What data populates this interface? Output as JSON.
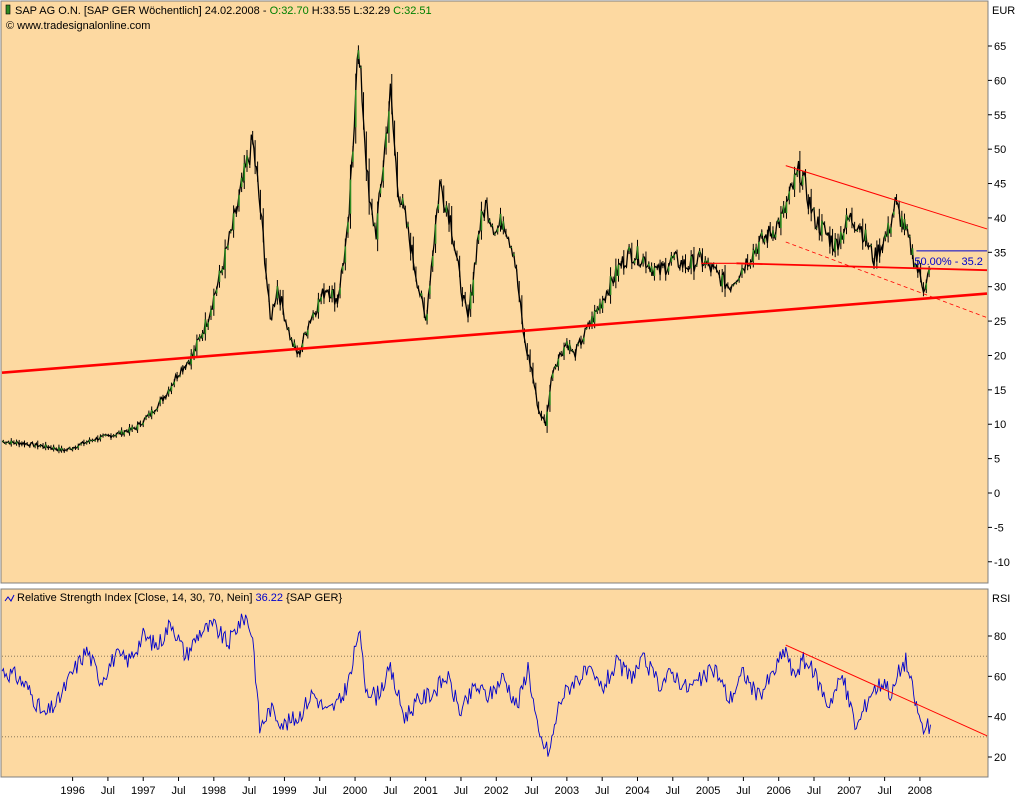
{
  "header": {
    "instrument": "SAP AG O.N. [SAP GER  Wöchentlich] 24.02.2008",
    "open": "O:32.70",
    "high": "H:33.55",
    "low": "L:32.29",
    "close": "C:32.51",
    "source": "© www.tradesignalonline.com",
    "currency_label": "EUR"
  },
  "indicator": {
    "label": "Relative Strength Index [Close, 14, 30, 70, Nein]",
    "value": "36.22",
    "symbol": "{SAP GER}",
    "axis_label": "RSI"
  },
  "retracement_label": "50.00% - 35.2",
  "colors": {
    "background": "#FDD9A1",
    "price": "#000000",
    "up_candle": "#2E8B22",
    "trendline": "#FF0000",
    "rsi": "#0000CC",
    "up_text": "#008000"
  },
  "chart_data": [
    {
      "type": "line",
      "title": "SAP AG O.N. [SAP GER Wöchentlich] 24.02.2008",
      "ylabel": "EUR",
      "ylim": [
        -12,
        68
      ],
      "yticks": [
        -10,
        -5,
        0,
        5,
        10,
        15,
        20,
        25,
        30,
        35,
        40,
        45,
        50,
        55,
        60,
        65
      ],
      "x_tick_labels": [
        "1996",
        "Jul",
        "1997",
        "Jul",
        "1998",
        "Jul",
        "1999",
        "Jul",
        "2000",
        "Jul",
        "2001",
        "Jul",
        "2002",
        "Jul",
        "2003",
        "Jul",
        "2004",
        "Jul",
        "2005",
        "Jul",
        "2006",
        "Jul",
        "2007",
        "Jul",
        "2008"
      ],
      "grid": false,
      "series": [
        {
          "x": [
            1995.0,
            1995.3,
            1995.6,
            1995.9,
            1996.1,
            1996.3,
            1996.6,
            1996.9,
            1997.1,
            1997.3,
            1997.5,
            1997.7,
            1997.9,
            1998.1,
            1998.3,
            1998.45,
            1998.55,
            1998.62,
            1998.7,
            1998.8,
            1998.9,
            1999.0,
            1999.1,
            1999.2,
            1999.35,
            1999.5,
            1999.6,
            1999.75,
            1999.9,
            1999.97,
            2000.03,
            2000.1,
            2000.2,
            2000.3,
            2000.4,
            2000.5,
            2000.6,
            2000.75,
            2000.9,
            2001.0,
            2001.1,
            2001.2,
            2001.35,
            2001.5,
            2001.6,
            2001.75,
            2001.85,
            2002.0,
            2002.1,
            2002.25,
            2002.4,
            2002.5,
            2002.6,
            2002.7,
            2002.8,
            2002.9,
            2003.0,
            2003.1,
            2003.2,
            2003.3,
            2003.45,
            2003.6,
            2003.75,
            2003.9,
            2004.1,
            2004.3,
            2004.5,
            2004.7,
            2004.9,
            2005.1,
            2005.3,
            2005.5,
            2005.7,
            2005.9,
            2006.05,
            2006.15,
            2006.3,
            2006.5,
            2006.65,
            2006.8,
            2007.0,
            2007.15,
            2007.35,
            2007.55,
            2007.65,
            2007.8,
            2007.95,
            2008.05,
            2008.15
          ],
          "values": [
            7.5,
            7.2,
            6.8,
            6.2,
            7.0,
            7.8,
            8.5,
            9.5,
            11.5,
            14.0,
            17.5,
            20.0,
            25.0,
            32.0,
            40.0,
            47.0,
            51.0,
            45.0,
            37.0,
            25.0,
            30.0,
            26.0,
            22.0,
            20.0,
            25.0,
            28.0,
            30.0,
            28.0,
            38.0,
            50.0,
            65.0,
            58.0,
            42.0,
            38.0,
            48.0,
            58.0,
            45.0,
            38.0,
            30.0,
            25.0,
            35.0,
            45.0,
            40.0,
            30.0,
            25.0,
            38.0,
            42.0,
            38.0,
            40.0,
            35.0,
            22.0,
            18.0,
            12.0,
            10.0,
            18.0,
            20.0,
            22.0,
            20.0,
            22.0,
            24.0,
            27.0,
            30.0,
            33.0,
            35.0,
            34.0,
            32.0,
            34.0,
            33.0,
            34.0,
            32.0,
            30.0,
            33.0,
            36.0,
            38.0,
            40.0,
            43.0,
            47.0,
            40.0,
            38.0,
            36.0,
            40.0,
            39.0,
            34.0,
            38.0,
            42.0,
            38.0,
            33.0,
            30.0,
            32.5
          ]
        }
      ]
    },
    {
      "type": "line",
      "title": "Relative Strength Index [Close, 14, 30, 70, Nein] 36.22 {SAP GER}",
      "ylabel": "RSI",
      "ylim": [
        14,
        92
      ],
      "yticks": [
        20,
        40,
        60,
        80
      ],
      "reference_lines": [
        30,
        70
      ],
      "grid": false,
      "series": [
        {
          "x": [
            1995.0,
            1995.2,
            1995.35,
            1995.6,
            1995.8,
            1996.0,
            1996.2,
            1996.4,
            1996.6,
            1996.8,
            1997.0,
            1997.2,
            1997.4,
            1997.6,
            1997.8,
            1998.0,
            1998.2,
            1998.35,
            1998.45,
            1998.55,
            1998.65,
            1998.8,
            1999.0,
            1999.2,
            1999.4,
            1999.6,
            1999.8,
            1999.95,
            2000.05,
            2000.15,
            2000.3,
            2000.5,
            2000.7,
            2000.9,
            2001.1,
            2001.3,
            2001.5,
            2001.7,
            2001.9,
            2002.1,
            2002.3,
            2002.45,
            2002.6,
            2002.75,
            2002.9,
            2003.1,
            2003.3,
            2003.5,
            2003.7,
            2003.9,
            2004.1,
            2004.3,
            2004.5,
            2004.7,
            2004.9,
            2005.1,
            2005.3,
            2005.5,
            2005.7,
            2005.9,
            2006.1,
            2006.2,
            2006.35,
            2006.5,
            2006.7,
            2006.9,
            2007.1,
            2007.3,
            2007.5,
            2007.6,
            2007.7,
            2007.8,
            2007.95,
            2008.05,
            2008.15
          ],
          "values": [
            63,
            60,
            55,
            40,
            48,
            62,
            73,
            58,
            70,
            68,
            80,
            75,
            87,
            70,
            82,
            85,
            76,
            86,
            90,
            80,
            34,
            44,
            36,
            40,
            52,
            42,
            48,
            62,
            84,
            55,
            50,
            63,
            40,
            48,
            52,
            60,
            42,
            55,
            50,
            60,
            45,
            65,
            30,
            22,
            48,
            58,
            62,
            54,
            66,
            60,
            68,
            56,
            62,
            54,
            58,
            64,
            48,
            62,
            50,
            60,
            74,
            60,
            68,
            62,
            46,
            60,
            34,
            52,
            58,
            50,
            62,
            68,
            45,
            33,
            36
          ]
        }
      ]
    }
  ]
}
